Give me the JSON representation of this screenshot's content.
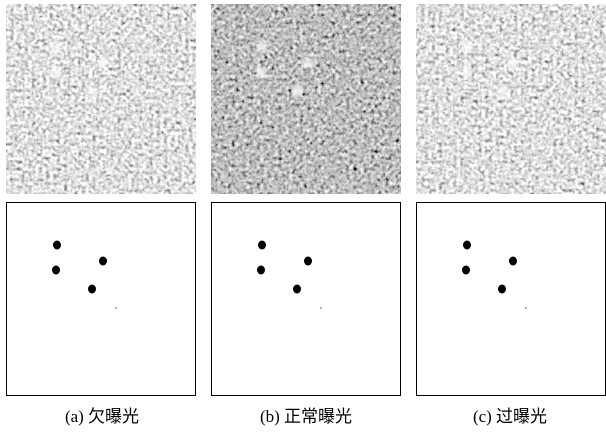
{
  "panels": [
    {
      "caption": "(a) 欠曝光"
    },
    {
      "caption": "(b) 正常曝光"
    },
    {
      "caption": "(c) 过曝光"
    }
  ]
}
